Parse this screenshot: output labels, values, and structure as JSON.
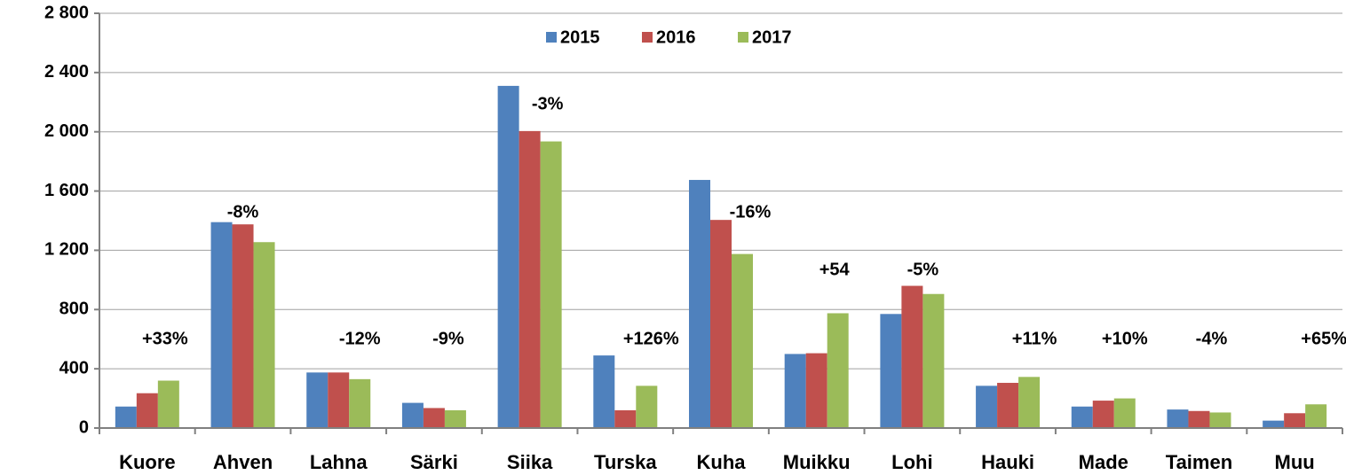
{
  "chart_data": {
    "type": "bar",
    "categories": [
      "Kuore",
      "Ahven",
      "Lahna",
      "Särki",
      "Siika",
      "Turska",
      "Kuha",
      "Muikku",
      "Lohi",
      "Hauki",
      "Made",
      "Taimen",
      "Muu"
    ],
    "series": [
      {
        "name": "2015",
        "color": "#4f81bd",
        "values": [
          145,
          1390,
          375,
          170,
          2310,
          490,
          1675,
          500,
          770,
          285,
          145,
          125,
          50
        ]
      },
      {
        "name": "2016",
        "color": "#c0504d",
        "values": [
          235,
          1375,
          375,
          135,
          2005,
          120,
          1405,
          505,
          960,
          305,
          185,
          115,
          100
        ]
      },
      {
        "name": "2017",
        "color": "#9bbb59",
        "values": [
          320,
          1255,
          330,
          120,
          1935,
          285,
          1175,
          775,
          905,
          345,
          200,
          105,
          160
        ]
      }
    ],
    "annotations": [
      "+33%",
      "-8%",
      "-12%",
      "-9%",
      "-3%",
      "+126%",
      "-16%",
      "+54",
      "-5%",
      "+11%",
      "+10%",
      "-4%",
      "+65%"
    ],
    "ylim": [
      0,
      2800
    ],
    "yticks": [
      {
        "value": 0,
        "label": "0"
      },
      {
        "value": 400,
        "label": "400"
      },
      {
        "value": 800,
        "label": "800"
      },
      {
        "value": 1200,
        "label": "1 200"
      },
      {
        "value": 1600,
        "label": "1 600"
      },
      {
        "value": 2000,
        "label": "2 000"
      },
      {
        "value": 2400,
        "label": "2 400"
      },
      {
        "value": 2800,
        "label": "2 800"
      }
    ],
    "grid": true,
    "legend": "top"
  }
}
